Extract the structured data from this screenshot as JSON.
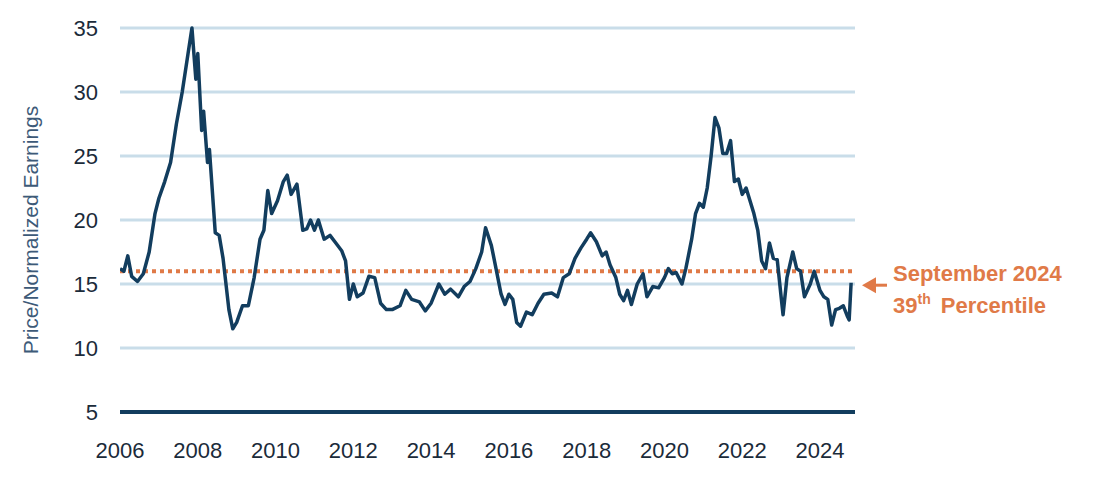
{
  "chart_data": {
    "type": "line",
    "y_label": "Price/Normalized Earnings",
    "color": "#123d5e",
    "grid": true,
    "xlim": [
      2006,
      2024.9
    ],
    "xticks": [
      2006,
      2008,
      2010,
      2012,
      2014,
      2016,
      2018,
      2020,
      2022,
      2024
    ],
    "ylim": [
      5,
      35
    ],
    "yticks": [
      5,
      10,
      15,
      20,
      25,
      30,
      35
    ],
    "reference_value": 16,
    "annotation": [
      "September 2024",
      "39th Percentile"
    ],
    "x": [
      2006.0,
      2006.1,
      2006.2,
      2006.3,
      2006.45,
      2006.6,
      2006.75,
      2006.9,
      2007.0,
      2007.15,
      2007.3,
      2007.45,
      2007.6,
      2007.75,
      2007.85,
      2007.95,
      2008.0,
      2008.1,
      2008.15,
      2008.25,
      2008.3,
      2008.45,
      2008.55,
      2008.65,
      2008.8,
      2008.9,
      2009.0,
      2009.15,
      2009.3,
      2009.45,
      2009.6,
      2009.7,
      2009.8,
      2009.9,
      2010.05,
      2010.2,
      2010.3,
      2010.4,
      2010.55,
      2010.7,
      2010.8,
      2010.9,
      2011.0,
      2011.1,
      2011.25,
      2011.4,
      2011.55,
      2011.7,
      2011.8,
      2011.9,
      2012.0,
      2012.1,
      2012.25,
      2012.4,
      2012.55,
      2012.7,
      2012.85,
      2013.0,
      2013.2,
      2013.35,
      2013.5,
      2013.7,
      2013.85,
      2014.0,
      2014.2,
      2014.35,
      2014.5,
      2014.7,
      2014.85,
      2015.0,
      2015.15,
      2015.3,
      2015.4,
      2015.55,
      2015.65,
      2015.8,
      2015.9,
      2016.0,
      2016.1,
      2016.2,
      2016.3,
      2016.45,
      2016.6,
      2016.75,
      2016.9,
      2017.1,
      2017.25,
      2017.4,
      2017.55,
      2017.7,
      2017.85,
      2018.0,
      2018.1,
      2018.25,
      2018.4,
      2018.5,
      2018.6,
      2018.75,
      2018.85,
      2018.95,
      2019.05,
      2019.15,
      2019.3,
      2019.45,
      2019.55,
      2019.7,
      2019.85,
      2020.0,
      2020.1,
      2020.2,
      2020.3,
      2020.45,
      2020.55,
      2020.7,
      2020.8,
      2020.9,
      2021.0,
      2021.1,
      2021.2,
      2021.3,
      2021.4,
      2021.5,
      2021.6,
      2021.7,
      2021.8,
      2021.9,
      2022.0,
      2022.1,
      2022.2,
      2022.3,
      2022.4,
      2022.5,
      2022.6,
      2022.7,
      2022.8,
      2022.9,
      2023.0,
      2023.05,
      2023.15,
      2023.3,
      2023.4,
      2023.5,
      2023.6,
      2023.75,
      2023.85,
      2024.0,
      2024.1,
      2024.2,
      2024.3,
      2024.4,
      2024.5,
      2024.6,
      2024.7,
      2024.75,
      2024.8
    ],
    "values": [
      16.2,
      16.0,
      17.2,
      15.6,
      15.2,
      15.8,
      17.5,
      20.5,
      21.7,
      23,
      24.5,
      27.5,
      30,
      33,
      35,
      31,
      33,
      27,
      28.5,
      24.5,
      25.5,
      19,
      18.8,
      17,
      13,
      11.5,
      12,
      13.3,
      13.3,
      15.5,
      18.5,
      19.2,
      22.3,
      20.5,
      21.5,
      23,
      23.5,
      22,
      22.8,
      19.2,
      19.3,
      20,
      19.2,
      20,
      18.5,
      18.8,
      18.2,
      17.6,
      16.8,
      13.8,
      15,
      14,
      14.3,
      15.6,
      15.5,
      13.5,
      13,
      13,
      13.3,
      14.5,
      13.8,
      13.6,
      12.9,
      13.5,
      15,
      14.2,
      14.6,
      14,
      14.8,
      15.2,
      16.2,
      17.5,
      19.4,
      18,
      16.5,
      14.2,
      13.4,
      14.2,
      13.8,
      12,
      11.7,
      12.8,
      12.6,
      13.5,
      14.2,
      14.3,
      14,
      15.5,
      15.8,
      17,
      17.8,
      18.5,
      19,
      18.3,
      17.2,
      17.5,
      16.5,
      15.5,
      14.2,
      13.7,
      14.5,
      13.4,
      15,
      15.8,
      14,
      14.8,
      14.7,
      15.5,
      16.2,
      15.8,
      15.9,
      15,
      16.2,
      18.5,
      20.5,
      21.3,
      21,
      22.5,
      25,
      28,
      27.2,
      25.2,
      25.2,
      26.2,
      23,
      23.2,
      22,
      22.5,
      21.5,
      20.5,
      19.2,
      16.8,
      16.2,
      18.2,
      17,
      16.9,
      14,
      12.6,
      15.5,
      17.5,
      16.2,
      16,
      14,
      15,
      16,
      14.5,
      14,
      13.8,
      11.8,
      13,
      13.1,
      13.3,
      12.5,
      12.2,
      15.1
    ]
  }
}
